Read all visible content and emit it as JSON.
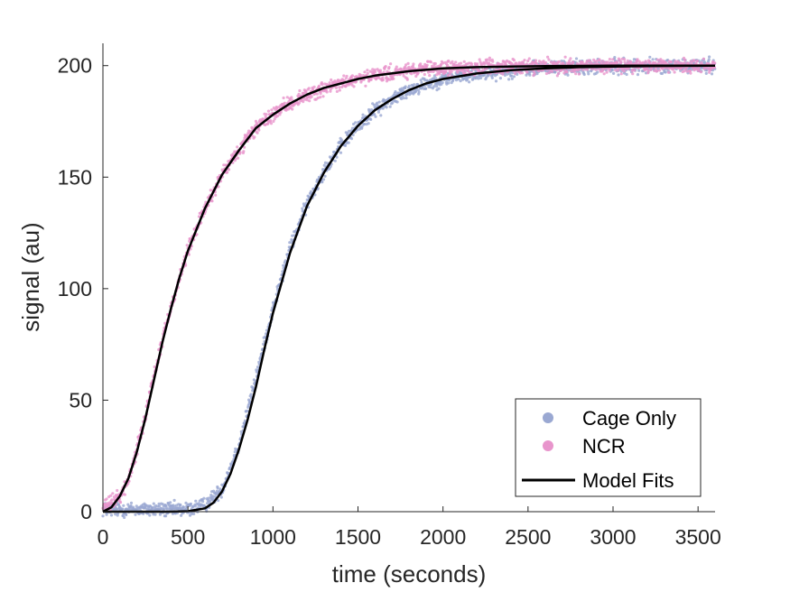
{
  "colors": {
    "cage_only": "#9aa8d2",
    "ncr": "#e895cc",
    "model_fits": "#000000",
    "axis": "#262626"
  },
  "chart_data": {
    "type": "scatter",
    "title": "",
    "xlabel": "time (seconds)",
    "ylabel": "signal (au)",
    "xlim": [
      0,
      3600
    ],
    "ylim": [
      0,
      210
    ],
    "xticks": [
      0,
      500,
      1000,
      1500,
      2000,
      2500,
      3000,
      3500
    ],
    "yticks": [
      0,
      50,
      100,
      150,
      200
    ],
    "xtick_labels": [
      "0",
      "500",
      "1000",
      "1500",
      "2000",
      "2500",
      "3000",
      "3500"
    ],
    "ytick_labels": [
      "0",
      "50",
      "100",
      "150",
      "200"
    ],
    "grid": false,
    "legend_position": "bottom-right",
    "series": [
      {
        "name": "Cage Only",
        "kind": "scatter",
        "color": "#9aa8d2",
        "x": [
          0,
          100,
          200,
          300,
          400,
          500,
          600,
          700,
          800,
          900,
          1000,
          1100,
          1200,
          1300,
          1400,
          1500,
          1600,
          1700,
          1800,
          1900,
          2000,
          2200,
          2400,
          2600,
          2800,
          3000,
          3200,
          3400,
          3600
        ],
        "y": [
          1,
          1,
          1,
          1,
          1,
          1,
          3,
          10,
          30,
          60,
          91,
          118,
          138,
          153,
          164,
          173,
          180,
          185,
          189,
          192,
          194,
          196.5,
          198,
          198.8,
          199.3,
          199.6,
          199.8,
          199.9,
          200
        ]
      },
      {
        "name": "NCR",
        "kind": "scatter",
        "color": "#e895cc",
        "x": [
          0,
          50,
          100,
          150,
          200,
          250,
          300,
          350,
          400,
          500,
          600,
          700,
          800,
          900,
          1000,
          1100,
          1200,
          1400,
          1600,
          1800,
          2000,
          2200,
          2400,
          2600,
          2800,
          3000,
          3200,
          3400,
          3600
        ],
        "y": [
          2,
          4,
          7,
          14,
          28,
          44,
          61,
          77,
          92,
          117,
          136,
          151,
          162,
          172,
          178,
          183,
          187,
          192,
          195.5,
          197.5,
          198.8,
          199.3,
          199.6,
          199.8,
          199.9,
          200,
          200,
          200,
          200
        ]
      },
      {
        "name": "Model Fits",
        "kind": "line",
        "color": "#000000",
        "curves": [
          {
            "x": [
              0,
              100,
              200,
              300,
              400,
              500,
              600,
              650,
              700,
              750,
              800,
              850,
              900,
              950,
              1000,
              1100,
              1200,
              1300,
              1400,
              1500,
              1600,
              1700,
              1800,
              1900,
              2000,
              2200,
              2400,
              2600,
              2800,
              3000,
              3200,
              3400,
              3600
            ],
            "y": [
              0,
              0,
              0,
              0,
              0,
              0.2,
              1.5,
              4,
              9,
              17,
              28,
              41,
              56,
              73,
              89,
              116,
              137,
              152,
              164,
              173,
              180,
              185,
              189,
              192,
              194,
              196.5,
              198,
              198.8,
              199.3,
              199.6,
              199.8,
              199.9,
              200
            ]
          },
          {
            "x": [
              0,
              50,
              100,
              150,
              200,
              250,
              300,
              350,
              400,
              450,
              500,
              600,
              700,
              800,
              900,
              1000,
              1100,
              1200,
              1300,
              1400,
              1500,
              1600,
              1800,
              2000,
              2200,
              2400,
              2600,
              2800,
              3000,
              3200,
              3400,
              3600
            ],
            "y": [
              0,
              2,
              7,
              15,
              27,
              42,
              59,
              76,
              91,
              105,
              117,
              136,
              151,
              162,
              172,
              178,
              183,
              187,
              190,
              192,
              194,
              195.5,
              197.5,
              198.8,
              199.3,
              199.6,
              199.8,
              199.9,
              200,
              200,
              200,
              200
            ]
          }
        ]
      }
    ]
  }
}
